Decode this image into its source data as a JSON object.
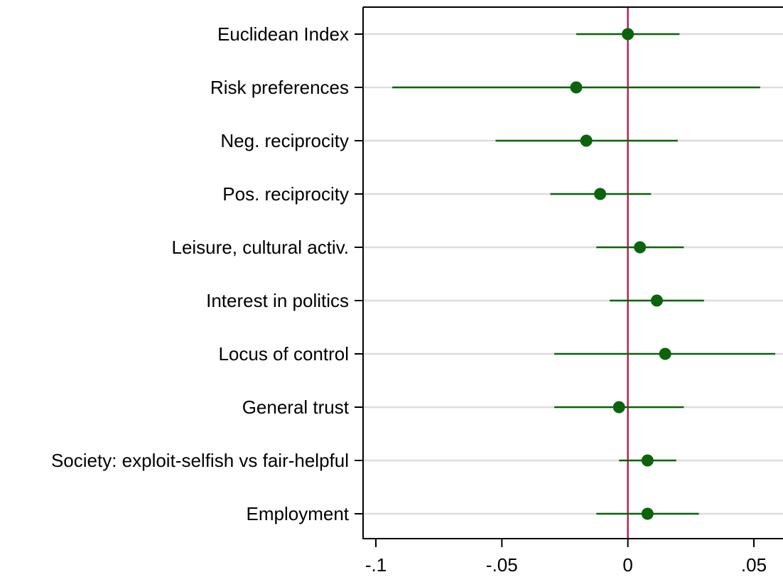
{
  "chart_data": {
    "type": "scatter",
    "subtype": "coefficient-plot-with-confidence-intervals",
    "title": "",
    "xlabel": "",
    "ylabel": "",
    "xlim": [
      -0.1,
      0.06
    ],
    "x_ticks": [
      {
        "value": -0.1,
        "label": "-.1"
      },
      {
        "value": -0.05,
        "label": "-.05"
      },
      {
        "value": 0,
        "label": "0"
      },
      {
        "value": 0.05,
        "label": ".05"
      }
    ],
    "reference_line": {
      "x": 0,
      "color": "#b5235a"
    },
    "grid": "horizontal",
    "legend": "none",
    "colors": {
      "marker": "#0b640b",
      "ci": "#0b640b",
      "grid": "#dddddd",
      "axis": "#000000"
    },
    "categories": [
      "Euclidean Index",
      "Risk preferences",
      "Neg. reciprocity",
      "Pos. reciprocity",
      "Leisure, cultural activ.",
      "Interest in politics",
      "Locus of control",
      "General trust",
      "Society: exploit-selfish vs fair-helpful",
      "Employment"
    ],
    "estimates": [
      0.0,
      -0.0205,
      -0.0165,
      -0.011,
      0.0048,
      0.0115,
      0.0148,
      -0.0035,
      0.0078,
      0.0078
    ],
    "ci_low": [
      -0.0205,
      -0.0935,
      -0.0525,
      -0.0308,
      -0.0125,
      -0.0072,
      -0.0292,
      -0.0292,
      -0.0035,
      -0.0125
    ],
    "ci_high": [
      0.0205,
      0.0525,
      0.0198,
      0.0092,
      0.0222,
      0.0302,
      0.0585,
      0.0222,
      0.0192,
      0.0282
    ]
  }
}
